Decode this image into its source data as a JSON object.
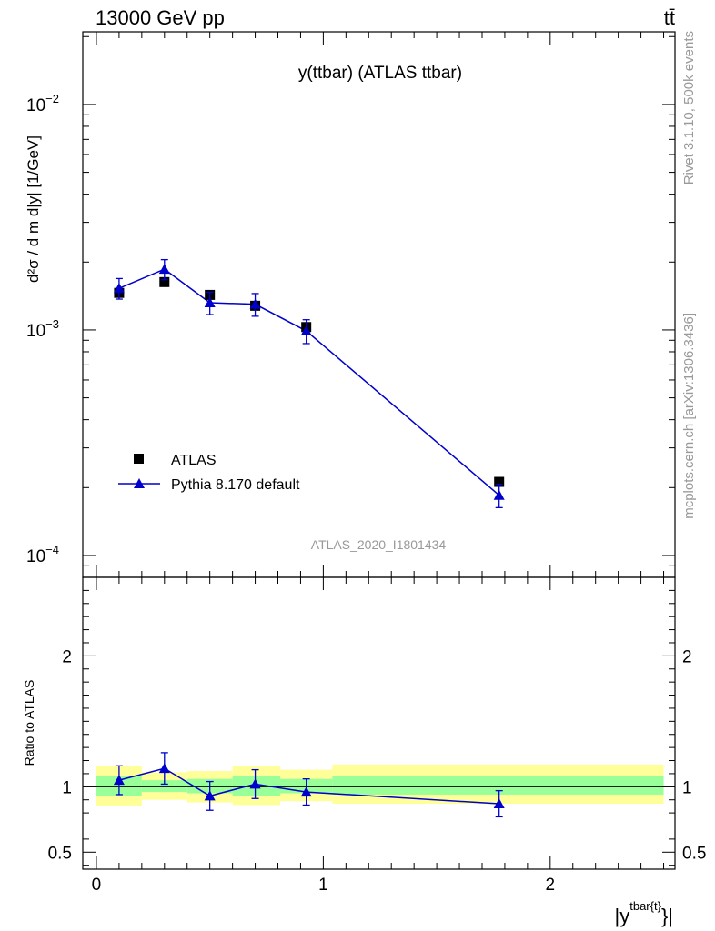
{
  "header": {
    "energy_label": "13000 GeV pp",
    "process_label": "tt̄"
  },
  "side_labels": {
    "rivet": "Rivet 3.1.10,  500k events",
    "mcplots": "mcplots.cern.ch [arXiv:1306.3436]"
  },
  "chart_data": [
    {
      "type": "scatter",
      "panel": "main",
      "title": "y(ttbar) (ATLAS ttbar)",
      "watermark": "ATLAS_2020_I1801434",
      "ylabel": "d²σ / d m d|y| [1/GeV]",
      "yscale": "log",
      "ylim": [
        8e-05,
        0.021
      ],
      "xlim": [
        -0.06,
        2.55
      ],
      "y_ticks": [
        {
          "value": 0.01,
          "label": "10",
          "exp": "−2"
        },
        {
          "value": 0.001,
          "label": "10",
          "exp": "−3"
        },
        {
          "value": 0.0001,
          "label": "10",
          "exp": "−4"
        }
      ],
      "legend_position": "lower-left",
      "series": [
        {
          "name": "ATLAS",
          "color": "#000000",
          "marker": "square",
          "x": [
            0.1,
            0.3,
            0.5,
            0.7,
            0.925,
            1.775
          ],
          "y": [
            0.00146,
            0.00163,
            0.00143,
            0.00128,
            0.00103,
            0.000212
          ]
        },
        {
          "name": "Pythia 8.170 default",
          "color": "#0000cc",
          "marker": "triangle",
          "x": [
            0.1,
            0.3,
            0.5,
            0.7,
            0.925,
            1.775
          ],
          "y": [
            0.00153,
            0.00186,
            0.00132,
            0.0013,
            0.00099,
            0.000185
          ],
          "err_low": [
            0.00016,
            0.00019,
            0.00015,
            0.00015,
            0.00012,
            2.2e-05
          ],
          "err_high": [
            0.00016,
            0.00019,
            0.00015,
            0.00015,
            0.00012,
            2.2e-05
          ]
        }
      ]
    },
    {
      "type": "scatter",
      "panel": "ratio",
      "ylabel": "Ratio to ATLAS",
      "xlabel": "|y^tbar{t}|",
      "ylim": [
        0.37,
        2.6
      ],
      "xlim": [
        -0.06,
        2.55
      ],
      "x_ticks": [
        0,
        1,
        2
      ],
      "y_ticks": [
        0.5,
        1,
        2
      ],
      "band_colors": {
        "inner": "#99ff99",
        "outer": "#ffff99"
      },
      "bands": [
        {
          "x0": 0.0,
          "x1": 0.2,
          "inner": [
            0.93,
            1.08
          ],
          "outer": [
            0.85,
            1.16
          ]
        },
        {
          "x0": 0.2,
          "x1": 0.4,
          "inner": [
            0.96,
            1.05
          ],
          "outer": [
            0.9,
            1.11
          ]
        },
        {
          "x0": 0.4,
          "x1": 0.6,
          "inner": [
            0.95,
            1.06
          ],
          "outer": [
            0.88,
            1.12
          ]
        },
        {
          "x0": 0.6,
          "x1": 0.81,
          "inner": [
            0.93,
            1.08
          ],
          "outer": [
            0.86,
            1.16
          ]
        },
        {
          "x0": 0.81,
          "x1": 1.04,
          "inner": [
            0.95,
            1.06
          ],
          "outer": [
            0.89,
            1.13
          ]
        },
        {
          "x0": 1.04,
          "x1": 2.5,
          "inner": [
            0.94,
            1.08
          ],
          "outer": [
            0.87,
            1.17
          ]
        }
      ],
      "series": [
        {
          "name": "Pythia 8.170 default",
          "color": "#0000cc",
          "x": [
            0.1,
            0.3,
            0.5,
            0.7,
            0.925,
            1.775
          ],
          "y": [
            1.05,
            1.14,
            0.93,
            1.02,
            0.96,
            0.87
          ],
          "err_low": [
            0.11,
            0.12,
            0.11,
            0.11,
            0.1,
            0.1
          ],
          "err_high": [
            0.11,
            0.12,
            0.11,
            0.11,
            0.1,
            0.1
          ]
        }
      ]
    }
  ]
}
